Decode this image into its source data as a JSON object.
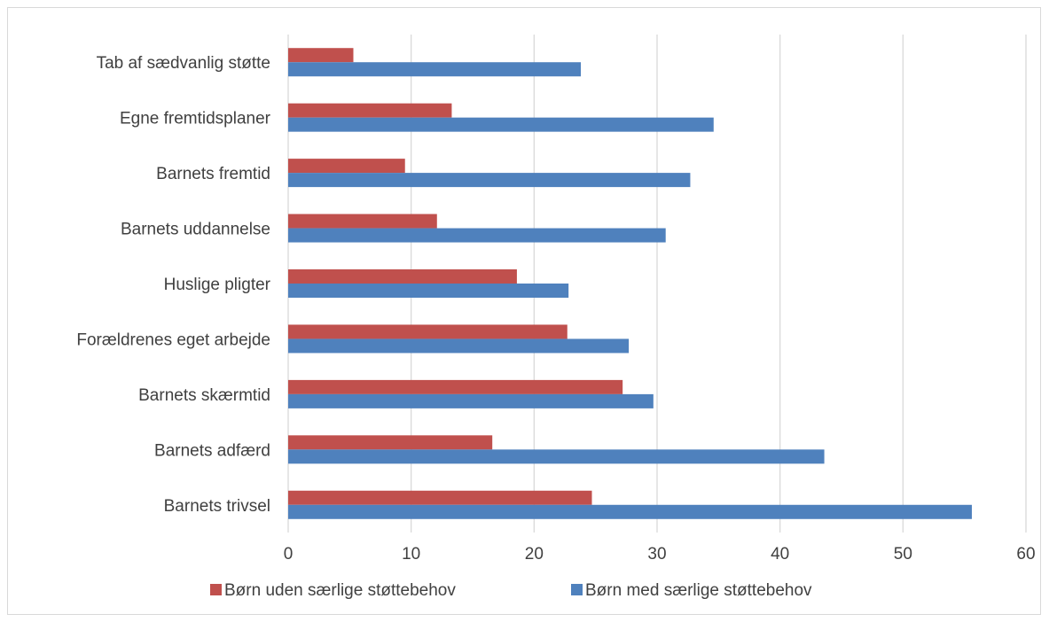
{
  "chart_data": {
    "type": "bar",
    "orientation": "horizontal",
    "categories": [
      "Tab af sædvanlig støtte",
      "Egne fremtidsplaner",
      "Barnets fremtid",
      "Barnets uddannelse",
      "Huslige pligter",
      "Forældrenes eget arbejde",
      "Barnets skærmtid",
      "Barnets adfærd",
      "Barnets trivsel"
    ],
    "series": [
      {
        "name": "Børn uden særlige støttebehov",
        "color": "#c0504d",
        "values": [
          5.3,
          13.3,
          9.5,
          12.1,
          18.6,
          22.7,
          27.2,
          16.6,
          24.7
        ]
      },
      {
        "name": "Børn med særlige støttebehov",
        "color": "#4f81bd",
        "values": [
          23.8,
          34.6,
          32.7,
          30.7,
          22.8,
          27.7,
          29.7,
          43.6,
          55.6
        ]
      }
    ],
    "xlim": [
      0,
      60
    ],
    "xticks": [
      "0",
      "10",
      "20",
      "30",
      "40",
      "50",
      "60"
    ],
    "grid": true,
    "legend_position": "bottom"
  }
}
